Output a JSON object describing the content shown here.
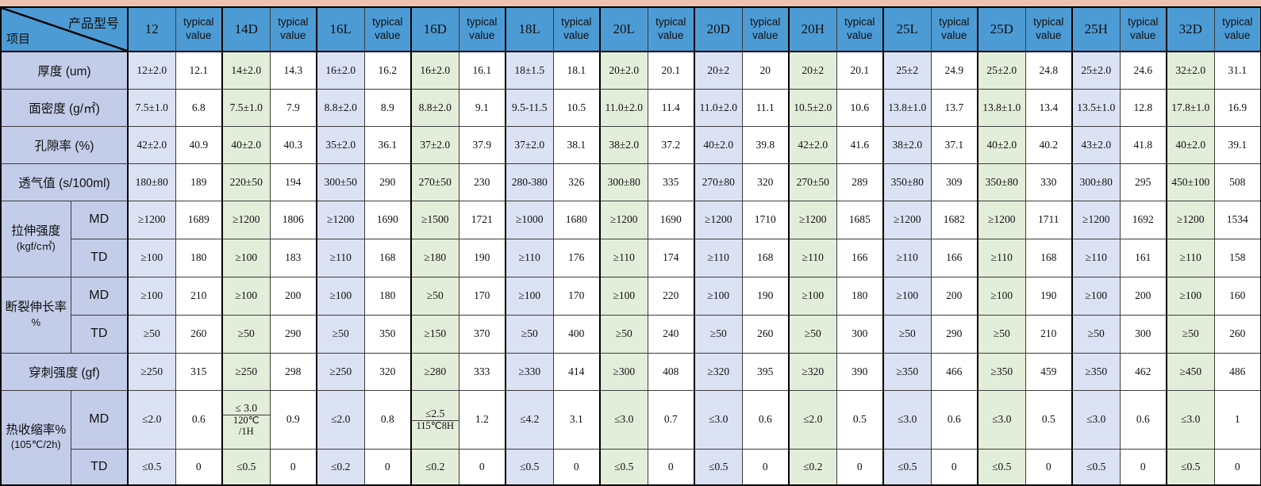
{
  "colors": {
    "header_bg": "#4d9bd5",
    "label_bg": "#c3cde9",
    "lavender": "#dbe2f3",
    "green": "#e3eeda",
    "strip": "#eec2b1",
    "grid": "#3c3c3c"
  },
  "corner": {
    "top_label": "产品型号",
    "bottom_label": "项目"
  },
  "header": {
    "models": [
      "12",
      "14D",
      "16L",
      "16D",
      "18L",
      "20L",
      "20D",
      "20H",
      "25L",
      "25D",
      "25H",
      "32D"
    ],
    "typical_label": "typical value",
    "tints": [
      "lav",
      "grn",
      "lav",
      "grn",
      "lav",
      "grn",
      "lav",
      "grn",
      "lav",
      "grn",
      "lav",
      "grn"
    ]
  },
  "rows": [
    {
      "type": "single",
      "label": [
        "厚度 (um)"
      ],
      "cells": [
        [
          "12±2.0",
          "12.1"
        ],
        [
          "14±2.0",
          "14.3"
        ],
        [
          "16±2.0",
          "16.2"
        ],
        [
          "16±2.0",
          "16.1"
        ],
        [
          "18±1.5",
          "18.1"
        ],
        [
          "20±2.0",
          "20.1"
        ],
        [
          "20±2",
          "20"
        ],
        [
          "20±2",
          "20.1"
        ],
        [
          "25±2",
          "24.9"
        ],
        [
          "25±2.0",
          "24.8"
        ],
        [
          "25±2.0",
          "24.6"
        ],
        [
          "32±2.0",
          "31.1"
        ]
      ]
    },
    {
      "type": "single",
      "label": [
        "面密度 (g/㎡)"
      ],
      "cells": [
        [
          "7.5±1.0",
          "6.8"
        ],
        [
          "7.5±1.0",
          "7.9"
        ],
        [
          "8.8±2.0",
          "8.9"
        ],
        [
          "8.8±2.0",
          "9.1"
        ],
        [
          "9.5-11.5",
          "10.5"
        ],
        [
          "11.0±2.0",
          "11.4"
        ],
        [
          "11.0±2.0",
          "11.1"
        ],
        [
          "10.5±2.0",
          "10.6"
        ],
        [
          "13.8±1.0",
          "13.7"
        ],
        [
          "13.8±1.0",
          "13.4"
        ],
        [
          "13.5±1.0",
          "12.8"
        ],
        [
          "17.8±1.0",
          "16.9"
        ]
      ]
    },
    {
      "type": "single",
      "label": [
        "孔隙率 (%)"
      ],
      "cells": [
        [
          "42±2.0",
          "40.9"
        ],
        [
          "40±2.0",
          "40.3"
        ],
        [
          "35±2.0",
          "36.1"
        ],
        [
          "37±2.0",
          "37.9"
        ],
        [
          "37±2.0",
          "38.1"
        ],
        [
          "38±2.0",
          "37.2"
        ],
        [
          "40±2.0",
          "39.8"
        ],
        [
          "42±2.0",
          "41.6"
        ],
        [
          "38±2.0",
          "37.1"
        ],
        [
          "40±2.0",
          "40.2"
        ],
        [
          "43±2.0",
          "41.8"
        ],
        [
          "40±2.0",
          "39.1"
        ]
      ]
    },
    {
      "type": "single",
      "label": [
        "透气值 (s/100ml)"
      ],
      "cells": [
        [
          "180±80",
          "189"
        ],
        [
          "220±50",
          "194"
        ],
        [
          "300±50",
          "290"
        ],
        [
          "270±50",
          "230"
        ],
        [
          "280-380",
          "326"
        ],
        [
          "300±80",
          "335"
        ],
        [
          "270±80",
          "320"
        ],
        [
          "270±50",
          "289"
        ],
        [
          "350±80",
          "309"
        ],
        [
          "350±80",
          "330"
        ],
        [
          "300±80",
          "295"
        ],
        [
          "450±100",
          "508"
        ]
      ]
    },
    {
      "type": "group_start",
      "group": [
        "拉伸强度",
        "(kgf/c㎡)"
      ],
      "rowspan": 2,
      "sub": "MD",
      "cells": [
        [
          "≥1200",
          "1689"
        ],
        [
          "≥1200",
          "1806"
        ],
        [
          "≥1200",
          "1690"
        ],
        [
          "≥1500",
          "1721"
        ],
        [
          "≥1000",
          "1680"
        ],
        [
          "≥1200",
          "1690"
        ],
        [
          "≥1200",
          "1710"
        ],
        [
          "≥1200",
          "1685"
        ],
        [
          "≥1200",
          "1682"
        ],
        [
          "≥1200",
          "1711"
        ],
        [
          "≥1200",
          "1692"
        ],
        [
          "≥1200",
          "1534"
        ]
      ]
    },
    {
      "type": "group_cont",
      "sub": "TD",
      "cells": [
        [
          "≥100",
          "180"
        ],
        [
          "≥100",
          "183"
        ],
        [
          "≥110",
          "168"
        ],
        [
          "≥180",
          "190"
        ],
        [
          "≥110",
          "176"
        ],
        [
          "≥110",
          "174"
        ],
        [
          "≥110",
          "168"
        ],
        [
          "≥110",
          "166"
        ],
        [
          "≥110",
          "166"
        ],
        [
          "≥110",
          "168"
        ],
        [
          "≥110",
          "161"
        ],
        [
          "≥110",
          "158"
        ]
      ]
    },
    {
      "type": "group_start",
      "group": [
        "断裂伸长率",
        "%"
      ],
      "rowspan": 2,
      "sub": "MD",
      "cells": [
        [
          "≥100",
          "210"
        ],
        [
          "≥100",
          "200"
        ],
        [
          "≥100",
          "180"
        ],
        [
          "≥50",
          "170"
        ],
        [
          "≥100",
          "170"
        ],
        [
          "≥100",
          "220"
        ],
        [
          "≥100",
          "190"
        ],
        [
          "≥100",
          "180"
        ],
        [
          "≥100",
          "200"
        ],
        [
          "≥100",
          "190"
        ],
        [
          "≥100",
          "200"
        ],
        [
          "≥100",
          "160"
        ]
      ]
    },
    {
      "type": "group_cont",
      "sub": "TD",
      "cells": [
        [
          "≥50",
          "260"
        ],
        [
          "≥50",
          "290"
        ],
        [
          "≥50",
          "350"
        ],
        [
          "≥150",
          "370"
        ],
        [
          "≥50",
          "400"
        ],
        [
          "≥50",
          "240"
        ],
        [
          "≥50",
          "260"
        ],
        [
          "≥50",
          "300"
        ],
        [
          "≥50",
          "290"
        ],
        [
          "≥50",
          "210"
        ],
        [
          "≥50",
          "300"
        ],
        [
          "≥50",
          "260"
        ]
      ]
    },
    {
      "type": "single",
      "label": [
        "穿刺强度 (gf)"
      ],
      "cells": [
        [
          "≥250",
          "315"
        ],
        [
          "≥250",
          "298"
        ],
        [
          "≥250",
          "320"
        ],
        [
          "≥280",
          "333"
        ],
        [
          "≥330",
          "414"
        ],
        [
          "≥300",
          "408"
        ],
        [
          "≥320",
          "395"
        ],
        [
          "≥320",
          "390"
        ],
        [
          "≥350",
          "466"
        ],
        [
          "≥350",
          "459"
        ],
        [
          "≥350",
          "462"
        ],
        [
          "≥450",
          "486"
        ]
      ]
    },
    {
      "type": "group_start",
      "group": [
        "热收缩率%",
        "(105℃/2h)"
      ],
      "rowspan": 2,
      "sub": "MD",
      "cells": [
        [
          "≤2.0",
          "0.6"
        ],
        [
          {
            "top": "≤ 3.0",
            "bottom": "120℃\n/1H"
          },
          "0.9"
        ],
        [
          "≤2.0",
          "0.8"
        ],
        [
          {
            "top": "≤2.5",
            "bottom": "115℃8H"
          },
          "1.2"
        ],
        [
          "≤4.2",
          "3.1"
        ],
        [
          "≤3.0",
          "0.7"
        ],
        [
          "≤3.0",
          "0.6"
        ],
        [
          "≤2.0",
          "0.5"
        ],
        [
          "≤3.0",
          "0.6"
        ],
        [
          "≤3.0",
          "0.5"
        ],
        [
          "≤3.0",
          "0.6"
        ],
        [
          "≤3.0",
          "1"
        ]
      ]
    },
    {
      "type": "group_cont",
      "sub": "TD",
      "cells": [
        [
          "≤0.5",
          "0"
        ],
        [
          "≤0.5",
          "0"
        ],
        [
          "≤0.2",
          "0"
        ],
        [
          "≤0.2",
          "0"
        ],
        [
          "≤0.5",
          "0"
        ],
        [
          "≤0.5",
          "0"
        ],
        [
          "≤0.5",
          "0"
        ],
        [
          "≤0.2",
          "0"
        ],
        [
          "≤0.5",
          "0"
        ],
        [
          "≤0.5",
          "0"
        ],
        [
          "≤0.5",
          "0"
        ],
        [
          "≤0.5",
          "0"
        ]
      ]
    }
  ]
}
